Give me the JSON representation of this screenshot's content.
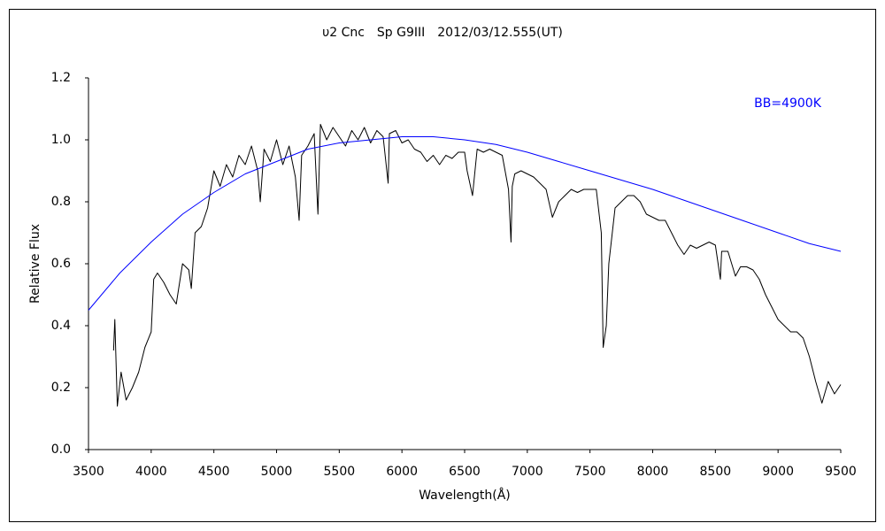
{
  "chart_data": {
    "type": "line",
    "title": "υ2 Cnc　Sp G9III　2012/03/12.555(UT)",
    "xlabel": "Wavelength(Å)",
    "ylabel": "Relative Flux",
    "xlim": [
      3500,
      9500
    ],
    "xticks": [
      3500,
      4000,
      4500,
      5000,
      5500,
      6000,
      6500,
      7000,
      7500,
      8000,
      8500,
      9000,
      9500
    ],
    "ylim": [
      0,
      1.2
    ],
    "yticks": [
      {
        "value": 0,
        "label": "0.0"
      },
      0.2,
      0.4,
      0.6,
      0.8,
      {
        "value": 1,
        "label": "1.0"
      },
      1.2
    ],
    "grid": false,
    "series": [
      {
        "color": "#000000",
        "x": [
          3700,
          3710,
          3730,
          3760,
          3800,
          3850,
          3900,
          3950,
          4000,
          4020,
          4050,
          4100,
          4150,
          4200,
          4250,
          4300,
          4320,
          4350,
          4400,
          4450,
          4500,
          4550,
          4600,
          4650,
          4700,
          4750,
          4800,
          4850,
          4870,
          4900,
          4950,
          5000,
          5050,
          5100,
          5150,
          5180,
          5200,
          5250,
          5300,
          5330,
          5350,
          5400,
          5450,
          5500,
          5550,
          5600,
          5650,
          5700,
          5750,
          5800,
          5850,
          5890,
          5900,
          5950,
          6000,
          6050,
          6100,
          6150,
          6200,
          6250,
          6300,
          6350,
          6400,
          6450,
          6500,
          6520,
          6563,
          6600,
          6650,
          6700,
          6750,
          6800,
          6850,
          6870,
          6880,
          6900,
          6950,
          7000,
          7050,
          7100,
          7150,
          7200,
          7250,
          7300,
          7350,
          7400,
          7450,
          7500,
          7550,
          7590,
          7605,
          7630,
          7650,
          7700,
          7750,
          7800,
          7850,
          7900,
          7950,
          8000,
          8050,
          8100,
          8150,
          8200,
          8250,
          8300,
          8350,
          8400,
          8450,
          8500,
          8540,
          8550,
          8600,
          8660,
          8700,
          8750,
          8800,
          8850,
          8900,
          8950,
          9000,
          9050,
          9100,
          9150,
          9200,
          9250,
          9300,
          9350,
          9400,
          9450,
          9500
        ],
        "values": [
          0.32,
          0.42,
          0.14,
          0.25,
          0.16,
          0.2,
          0.25,
          0.33,
          0.38,
          0.55,
          0.57,
          0.54,
          0.5,
          0.47,
          0.6,
          0.58,
          0.52,
          0.7,
          0.72,
          0.78,
          0.9,
          0.85,
          0.92,
          0.88,
          0.95,
          0.92,
          0.98,
          0.9,
          0.8,
          0.97,
          0.93,
          1.0,
          0.92,
          0.98,
          0.88,
          0.74,
          0.95,
          0.98,
          1.02,
          0.76,
          1.05,
          1.0,
          1.04,
          1.01,
          0.98,
          1.03,
          1.0,
          1.04,
          0.99,
          1.03,
          1.01,
          0.86,
          1.02,
          1.03,
          0.99,
          1.0,
          0.97,
          0.96,
          0.93,
          0.95,
          0.92,
          0.95,
          0.94,
          0.96,
          0.96,
          0.9,
          0.82,
          0.97,
          0.96,
          0.97,
          0.96,
          0.95,
          0.84,
          0.67,
          0.85,
          0.89,
          0.9,
          0.89,
          0.88,
          0.86,
          0.84,
          0.75,
          0.8,
          0.82,
          0.84,
          0.83,
          0.84,
          0.84,
          0.84,
          0.7,
          0.33,
          0.4,
          0.6,
          0.78,
          0.8,
          0.82,
          0.82,
          0.8,
          0.76,
          0.75,
          0.74,
          0.74,
          0.7,
          0.66,
          0.63,
          0.66,
          0.65,
          0.66,
          0.67,
          0.66,
          0.55,
          0.64,
          0.64,
          0.56,
          0.59,
          0.59,
          0.58,
          0.55,
          0.5,
          0.46,
          0.42,
          0.4,
          0.38,
          0.38,
          0.36,
          0.3,
          0.22,
          0.15,
          0.22,
          0.18,
          0.21
        ]
      },
      {
        "name": "BB=4900K",
        "color": "#0000ff",
        "x": [
          3500,
          3750,
          4000,
          4250,
          4500,
          4750,
          5000,
          5250,
          5500,
          5750,
          6000,
          6250,
          6500,
          6750,
          7000,
          7250,
          7500,
          7750,
          8000,
          8250,
          8500,
          8750,
          9000,
          9250,
          9500
        ],
        "values": [
          0.45,
          0.57,
          0.67,
          0.76,
          0.83,
          0.89,
          0.93,
          0.97,
          0.99,
          1.0,
          1.01,
          1.01,
          1.0,
          0.985,
          0.96,
          0.93,
          0.9,
          0.87,
          0.84,
          0.805,
          0.77,
          0.735,
          0.7,
          0.665,
          0.64
        ]
      }
    ]
  }
}
